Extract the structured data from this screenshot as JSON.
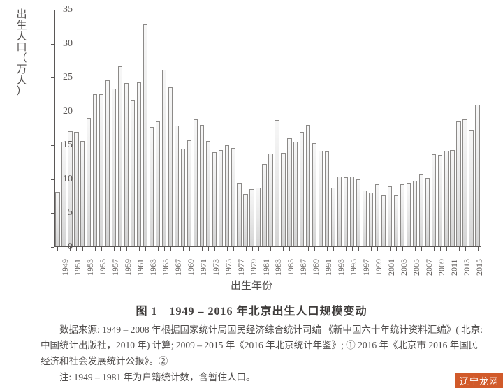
{
  "chart": {
    "type": "bar",
    "ylabel_chars": [
      "出",
      "生",
      "人",
      "口",
      "（",
      "万",
      "人",
      "）"
    ],
    "xlabel": "出生年份",
    "ylim": [
      0,
      35
    ],
    "ytick_step": 5,
    "tick_fontsize": 14,
    "label_fontsize": 15,
    "bar_fill_top": "#f7f7f7",
    "bar_fill_bottom": "#d4d4d4",
    "bar_border": "#8c8a88",
    "axis_color": "#5a5756",
    "background_color": "#ffffff",
    "bar_rel_width": 0.7,
    "xtick_every": 2,
    "years": [
      1949,
      1950,
      1951,
      1952,
      1953,
      1954,
      1955,
      1956,
      1957,
      1958,
      1959,
      1960,
      1961,
      1962,
      1963,
      1964,
      1965,
      1966,
      1967,
      1968,
      1969,
      1970,
      1971,
      1972,
      1973,
      1974,
      1975,
      1976,
      1977,
      1978,
      1979,
      1980,
      1981,
      1982,
      1983,
      1984,
      1985,
      1986,
      1987,
      1988,
      1989,
      1990,
      1991,
      1992,
      1993,
      1994,
      1995,
      1996,
      1997,
      1998,
      1999,
      2000,
      2001,
      2002,
      2003,
      2004,
      2005,
      2006,
      2007,
      2008,
      2009,
      2010,
      2011,
      2012,
      2013,
      2014,
      2015,
      2016
    ],
    "values": [
      8.1,
      15.5,
      17.1,
      17.0,
      15.7,
      19.0,
      22.5,
      22.5,
      24.6,
      23.4,
      26.7,
      24.2,
      21.6,
      24.3,
      32.8,
      17.7,
      18.5,
      26.2,
      23.6,
      17.9,
      14.5,
      15.8,
      18.8,
      18.0,
      15.7,
      14.0,
      14.3,
      15.0,
      14.6,
      9.5,
      7.8,
      8.5,
      8.8,
      12.3,
      13.8,
      18.7,
      13.9,
      16.1,
      15.5,
      17.0,
      18.0,
      15.3,
      14.2,
      14.1,
      8.8,
      10.4,
      10.3,
      10.4,
      10.0,
      8.3,
      8.0,
      9.3,
      7.6,
      9.0,
      7.6,
      9.3,
      9.5,
      9.8,
      10.7,
      10.2,
      13.7,
      13.6,
      14.2,
      14.3,
      18.5,
      18.8,
      17.2,
      21.0
    ]
  },
  "caption": "图 1　1949 – 2016 年北京出生人口规模变动",
  "source_text": "数据来源: 1949 – 2008 年根据国家统计局国民经济综合统计司编 《新中国六十年统计资料汇编》( 北京: 中国统计出版社，2010 年) 计算; 2009 – 2015 年《2016 年北京统计年鉴》; ① 2016 年《北京市 2016 年国民经济和社会发展统计公报》。②",
  "note_text": "注: 1949 – 1981 年为户籍统计数，含暂住人口。",
  "watermark": "辽宁龙网"
}
